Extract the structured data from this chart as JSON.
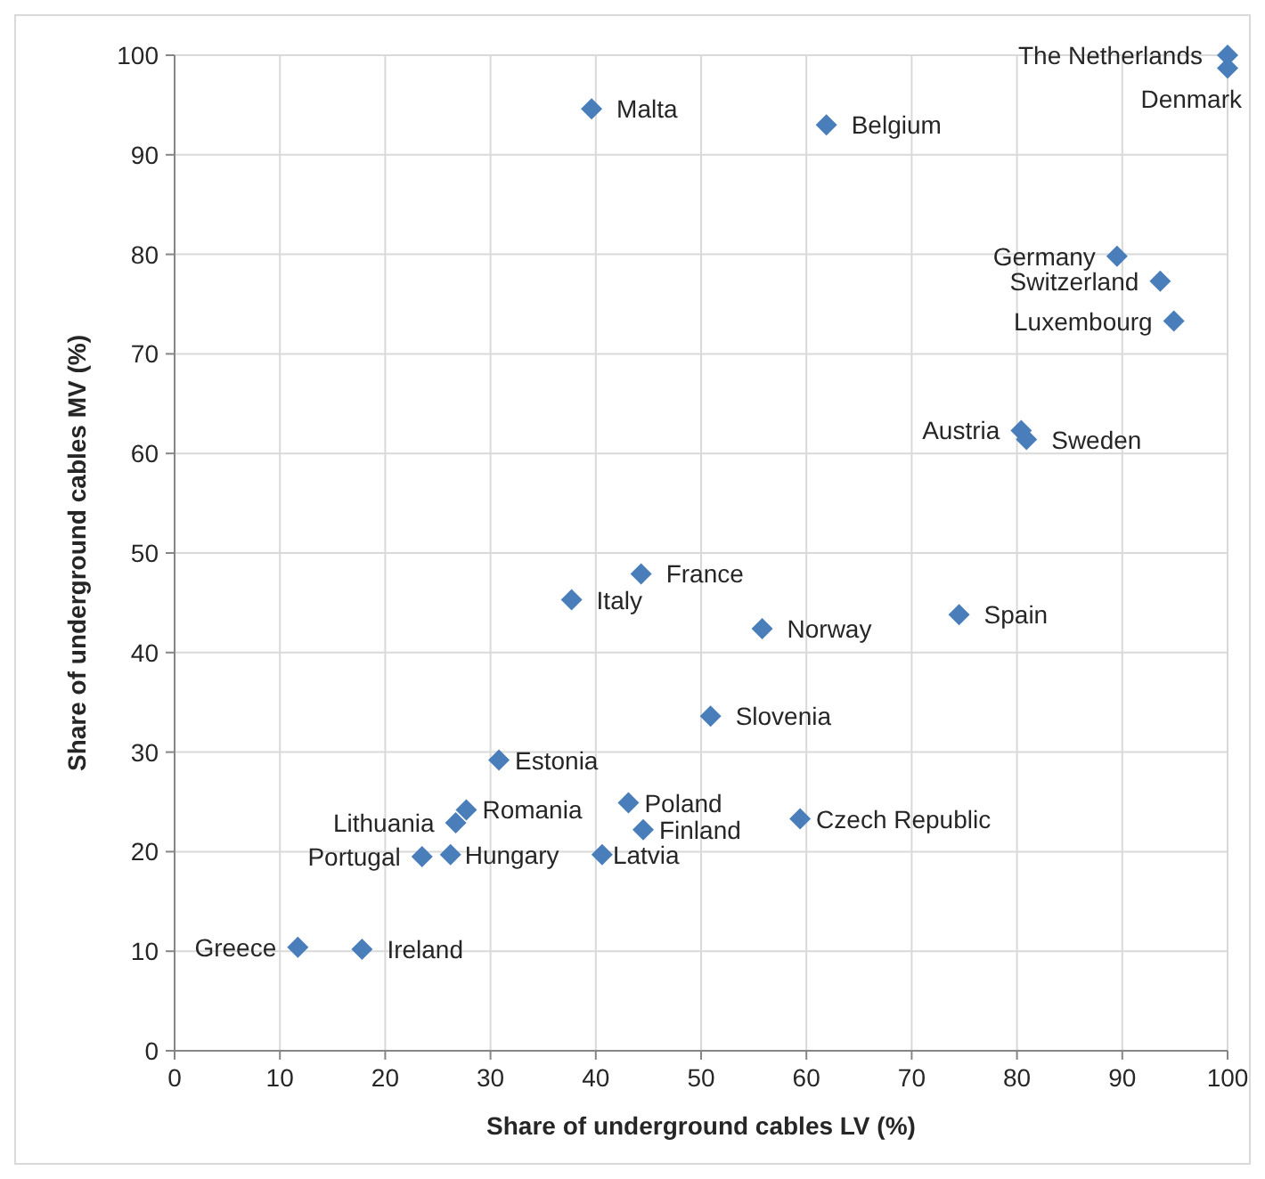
{
  "chart_data": {
    "type": "scatter",
    "xlabel": "Share of underground cables LV (%)",
    "ylabel": "Share of underground cables MV (%)",
    "x": [
      100,
      100,
      39.6,
      61.9,
      89.5,
      93.6,
      94.9,
      80.4,
      80.9,
      44.3,
      37.7,
      55.8,
      74.5,
      50.9,
      30.8,
      43.1,
      44.5,
      59.4,
      27.7,
      26.7,
      26.2,
      23.5,
      40.6,
      11.7,
      17.8
    ],
    "values": [
      100,
      98.7,
      94.6,
      93.0,
      79.8,
      77.3,
      73.3,
      62.3,
      61.4,
      47.9,
      45.3,
      42.4,
      43.8,
      33.6,
      29.2,
      24.9,
      22.2,
      23.3,
      24.2,
      22.9,
      19.7,
      19.5,
      19.7,
      10.4,
      10.2
    ],
    "value_labels": [
      "The Netherlands",
      "Denmark",
      "Malta",
      "Belgium",
      "Germany",
      "Switzerland",
      "Luxembourg",
      "Austria",
      "Sweden",
      "France",
      "Italy",
      "Norway",
      "Spain",
      "Slovenia",
      "Estonia",
      "Poland",
      "Finland",
      "Czech Republic",
      "Romania",
      "Lithuania",
      "Hungary",
      "Portugal",
      "Latvia",
      "Greece",
      "Ireland"
    ],
    "color": "#4a7ebb",
    "marker": "diamond",
    "grid": true,
    "xlim": [
      0,
      100
    ],
    "xticks": [
      0,
      10,
      20,
      30,
      40,
      50,
      60,
      70,
      80,
      90,
      100
    ],
    "ylim": [
      0,
      100
    ],
    "yticks": [
      0,
      10,
      20,
      30,
      40,
      50,
      60,
      70,
      80,
      90,
      100
    ]
  }
}
